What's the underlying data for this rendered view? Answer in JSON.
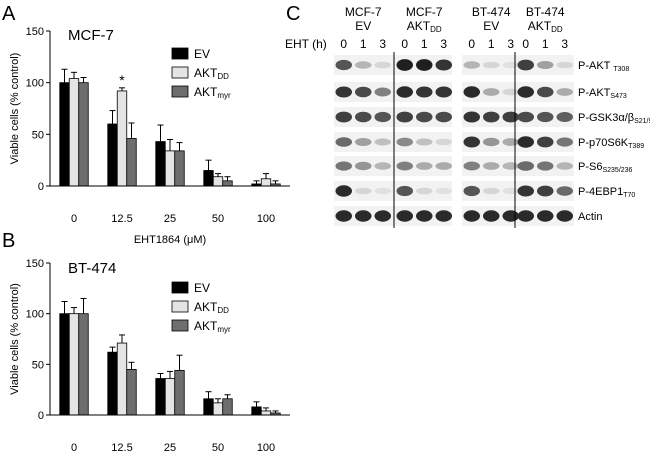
{
  "panels": {
    "a": "A",
    "b": "B",
    "c": "C"
  },
  "legend_items": [
    {
      "main": "EV",
      "sub": "",
      "color": "#000000"
    },
    {
      "main": "AKT",
      "sub": "DD",
      "color": "#e4e4e4"
    },
    {
      "main": "AKT",
      "sub": "myr",
      "color": "#6e6e6e"
    }
  ],
  "chart_data": [
    {
      "type": "bar",
      "title": "MCF-7",
      "ylabel": "Viable cells  (% control)",
      "xlabel_main": "EHT1864 (",
      "xlabel_unit": "μ",
      "xlabel_end": "M)",
      "categories": [
        "0",
        "12.5",
        "25",
        "50",
        "100"
      ],
      "ylim": [
        0,
        150
      ],
      "yticks": [
        "0",
        "50",
        "100",
        "150"
      ],
      "series": [
        {
          "name": "EV",
          "values": [
            100,
            60,
            43,
            15,
            2
          ],
          "errors": [
            13,
            13,
            16,
            10,
            3
          ]
        },
        {
          "name": "AKTDD",
          "values": [
            104,
            92,
            34,
            9,
            7
          ],
          "errors": [
            6,
            3,
            11,
            3,
            5
          ]
        },
        {
          "name": "AKTmyr",
          "values": [
            100,
            46,
            34,
            5,
            2
          ],
          "errors": [
            5,
            15,
            8,
            4,
            3
          ]
        }
      ],
      "annotations": [
        {
          "category": "12.5",
          "series": "AKTDD",
          "text": "*"
        }
      ]
    },
    {
      "type": "bar",
      "title": "BT-474",
      "ylabel": "Viable cells  (% control)",
      "xlabel_main": "EHT1864 (",
      "xlabel_unit": "μ",
      "xlabel_end": "M)",
      "categories": [
        "0",
        "12.5",
        "25",
        "50",
        "100"
      ],
      "ylim": [
        0,
        150
      ],
      "yticks": [
        "0",
        "50",
        "100",
        "150"
      ],
      "series": [
        {
          "name": "EV",
          "values": [
            100,
            62,
            36,
            16,
            8
          ],
          "errors": [
            12,
            5,
            5,
            7,
            5
          ]
        },
        {
          "name": "AKTDD",
          "values": [
            100,
            71,
            36,
            12,
            4
          ],
          "errors": [
            6,
            8,
            7,
            4,
            3
          ]
        },
        {
          "name": "AKTmyr",
          "values": [
            100,
            45,
            44,
            16,
            2
          ],
          "errors": [
            15,
            7,
            15,
            4,
            2
          ]
        }
      ]
    }
  ],
  "blot": {
    "treatment_label": "EHT (h)",
    "groups": [
      {
        "line1": "MCF-7",
        "line2": "EV",
        "line2_sub": "",
        "timepoints": [
          "0",
          "1",
          "3"
        ]
      },
      {
        "line1": "MCF-7",
        "line2": "AKT",
        "line2_sub": "DD",
        "timepoints": [
          "0",
          "1",
          "3"
        ]
      },
      {
        "line1": "BT-474",
        "line2": "EV",
        "line2_sub": "",
        "timepoints": [
          "0",
          "1",
          "3"
        ]
      },
      {
        "line1": "BT-474",
        "line2": "AKT",
        "line2_sub": "DD",
        "timepoints": [
          "0",
          "1",
          "3"
        ]
      }
    ],
    "bands": [
      {
        "main": "P-AKT ",
        "sub": "T308"
      },
      {
        "main": "P-AKT",
        "sub": "S473"
      },
      {
        "main": "P-GSK3α/β",
        "sub": "S21/9"
      },
      {
        "main": "P-p70S6K",
        "sub": "T389"
      },
      {
        "main": "P-S6",
        "sub": "S235/236"
      },
      {
        "main": "P-4EBP1",
        "sub": "T70"
      },
      {
        "main": "Actin",
        "sub": ""
      }
    ],
    "intensities": [
      [
        [
          0.7,
          0.25,
          0.1
        ],
        [
          0.95,
          0.95,
          0.85
        ],
        [
          0.25,
          0.1,
          0.05
        ],
        [
          0.8,
          0.35,
          0.1
        ]
      ],
      [
        [
          0.85,
          0.75,
          0.5
        ],
        [
          0.9,
          0.85,
          0.85
        ],
        [
          0.9,
          0.3,
          0.1
        ],
        [
          0.9,
          0.75,
          0.3
        ]
      ],
      [
        [
          0.8,
          0.75,
          0.7
        ],
        [
          0.8,
          0.75,
          0.75
        ],
        [
          0.85,
          0.8,
          0.8
        ],
        [
          0.75,
          0.7,
          0.65
        ]
      ],
      [
        [
          0.6,
          0.35,
          0.2
        ],
        [
          0.45,
          0.2,
          0.1
        ],
        [
          0.85,
          0.4,
          0.3
        ],
        [
          0.9,
          0.8,
          0.55
        ]
      ],
      [
        [
          0.55,
          0.4,
          0.25
        ],
        [
          0.5,
          0.3,
          0.3
        ],
        [
          0.5,
          0.3,
          0.25
        ],
        [
          0.6,
          0.55,
          0.25
        ]
      ],
      [
        [
          0.9,
          0.1,
          0.05
        ],
        [
          0.7,
          0.1,
          0.05
        ],
        [
          0.7,
          0.1,
          0.05
        ],
        [
          0.85,
          0.8,
          0.6
        ]
      ],
      [
        [
          0.9,
          0.9,
          0.9
        ],
        [
          0.9,
          0.9,
          0.9
        ],
        [
          0.9,
          0.9,
          0.9
        ],
        [
          0.9,
          0.9,
          0.9
        ]
      ]
    ]
  }
}
